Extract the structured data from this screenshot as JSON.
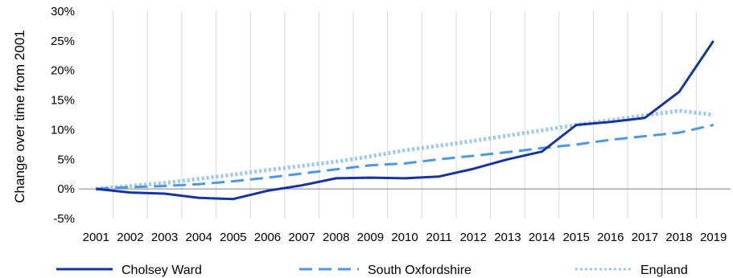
{
  "chart_data": {
    "type": "line",
    "x": [
      "2001",
      "2002",
      "2003",
      "2004",
      "2005",
      "2006",
      "2007",
      "2008",
      "2009",
      "2010",
      "2011",
      "2012",
      "2013",
      "2014",
      "2015",
      "2016",
      "2017",
      "2018",
      "2019"
    ],
    "ylabel": "Change over  time from 2001",
    "ylim": [
      -5,
      30
    ],
    "yticks": [
      "-5%",
      "0%",
      "5%",
      "10%",
      "15%",
      "20%",
      "25%",
      "30%"
    ],
    "grid": "vertical",
    "legend": "bottom",
    "series": [
      {
        "name": "Cholsey Ward",
        "style": "solid",
        "color": "#1434a4",
        "values": [
          0,
          -0.6,
          -0.8,
          -1.5,
          -1.7,
          -0.3,
          0.6,
          1.8,
          1.9,
          1.8,
          2.1,
          3.4,
          5.0,
          6.3,
          10.8,
          11.3,
          12.0,
          16.4,
          25.0
        ]
      },
      {
        "name": "South Oxfordshire",
        "style": "dashed",
        "color": "#4a98e6",
        "values": [
          0,
          0.3,
          0.5,
          0.8,
          1.3,
          1.9,
          2.6,
          3.3,
          4.0,
          4.3,
          5.0,
          5.6,
          6.2,
          6.9,
          7.5,
          8.3,
          8.9,
          9.5,
          10.8
        ]
      },
      {
        "name": "England",
        "style": "dotted",
        "color": "#9cc8f4",
        "values": [
          0,
          0.5,
          1.0,
          1.7,
          2.4,
          3.2,
          3.9,
          4.6,
          5.5,
          6.5,
          7.3,
          8.1,
          9.0,
          9.9,
          10.8,
          11.6,
          12.4,
          13.2,
          12.5
        ]
      }
    ]
  }
}
